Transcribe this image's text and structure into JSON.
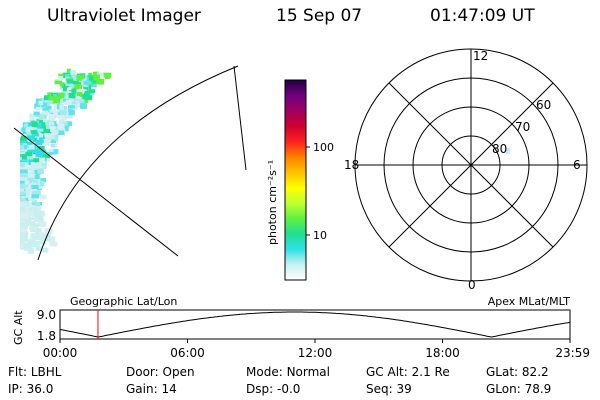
{
  "header": {
    "instrument": "Ultraviolet Imager",
    "date": "15 Sep 07",
    "time": "01:47:09 UT"
  },
  "colorbar": {
    "label": "photon cm⁻²s⁻¹",
    "ticks": [
      {
        "label": "100",
        "value": 100
      },
      {
        "label": "10",
        "value": 10
      }
    ],
    "colors": [
      "#ffffff",
      "#c8f0f0",
      "#30e0e8",
      "#20e090",
      "#60f040",
      "#c0ff30",
      "#ffff00",
      "#ffc000",
      "#ff8000",
      "#ff2020",
      "#d00030",
      "#a00060",
      "#700080",
      "#200040"
    ]
  },
  "polar_plot": {
    "mlt_labels": {
      "top": "12",
      "left": "18",
      "right": "6",
      "bottom": "0"
    },
    "lat_rings": [
      {
        "label": "80",
        "value": 80
      },
      {
        "label": "70",
        "value": 70
      },
      {
        "label": "60",
        "value": 60
      }
    ]
  },
  "orbit_strip": {
    "ylabel": "GC Alt",
    "y_ticks": [
      "9.0",
      "1.8"
    ],
    "left_title": "Geographic Lat/Lon",
    "right_title": "Apex MLat/MLT",
    "x_ticks": [
      "00:00",
      "06:00",
      "12:00",
      "18:00",
      "23:59"
    ],
    "current_time_hours": 1.786,
    "colors": {
      "marker": "#ff0000"
    }
  },
  "info": {
    "row1": [
      {
        "key": "Flt:",
        "value": "LBHL"
      },
      {
        "key": "Door:",
        "value": "Open"
      },
      {
        "key": "Mode:",
        "value": "Normal"
      },
      {
        "key": "GC Alt:",
        "value": "2.1 Re"
      },
      {
        "key": "GLat:",
        "value": "82.2"
      }
    ],
    "row2": [
      {
        "key": "IP:",
        "value": "36.0"
      },
      {
        "key": "Gain:",
        "value": "14"
      },
      {
        "key": "Dsp:",
        "value": "-0.0"
      },
      {
        "key": "Seq:",
        "value": "39"
      },
      {
        "key": "GLon:",
        "value": "78.9"
      }
    ]
  }
}
